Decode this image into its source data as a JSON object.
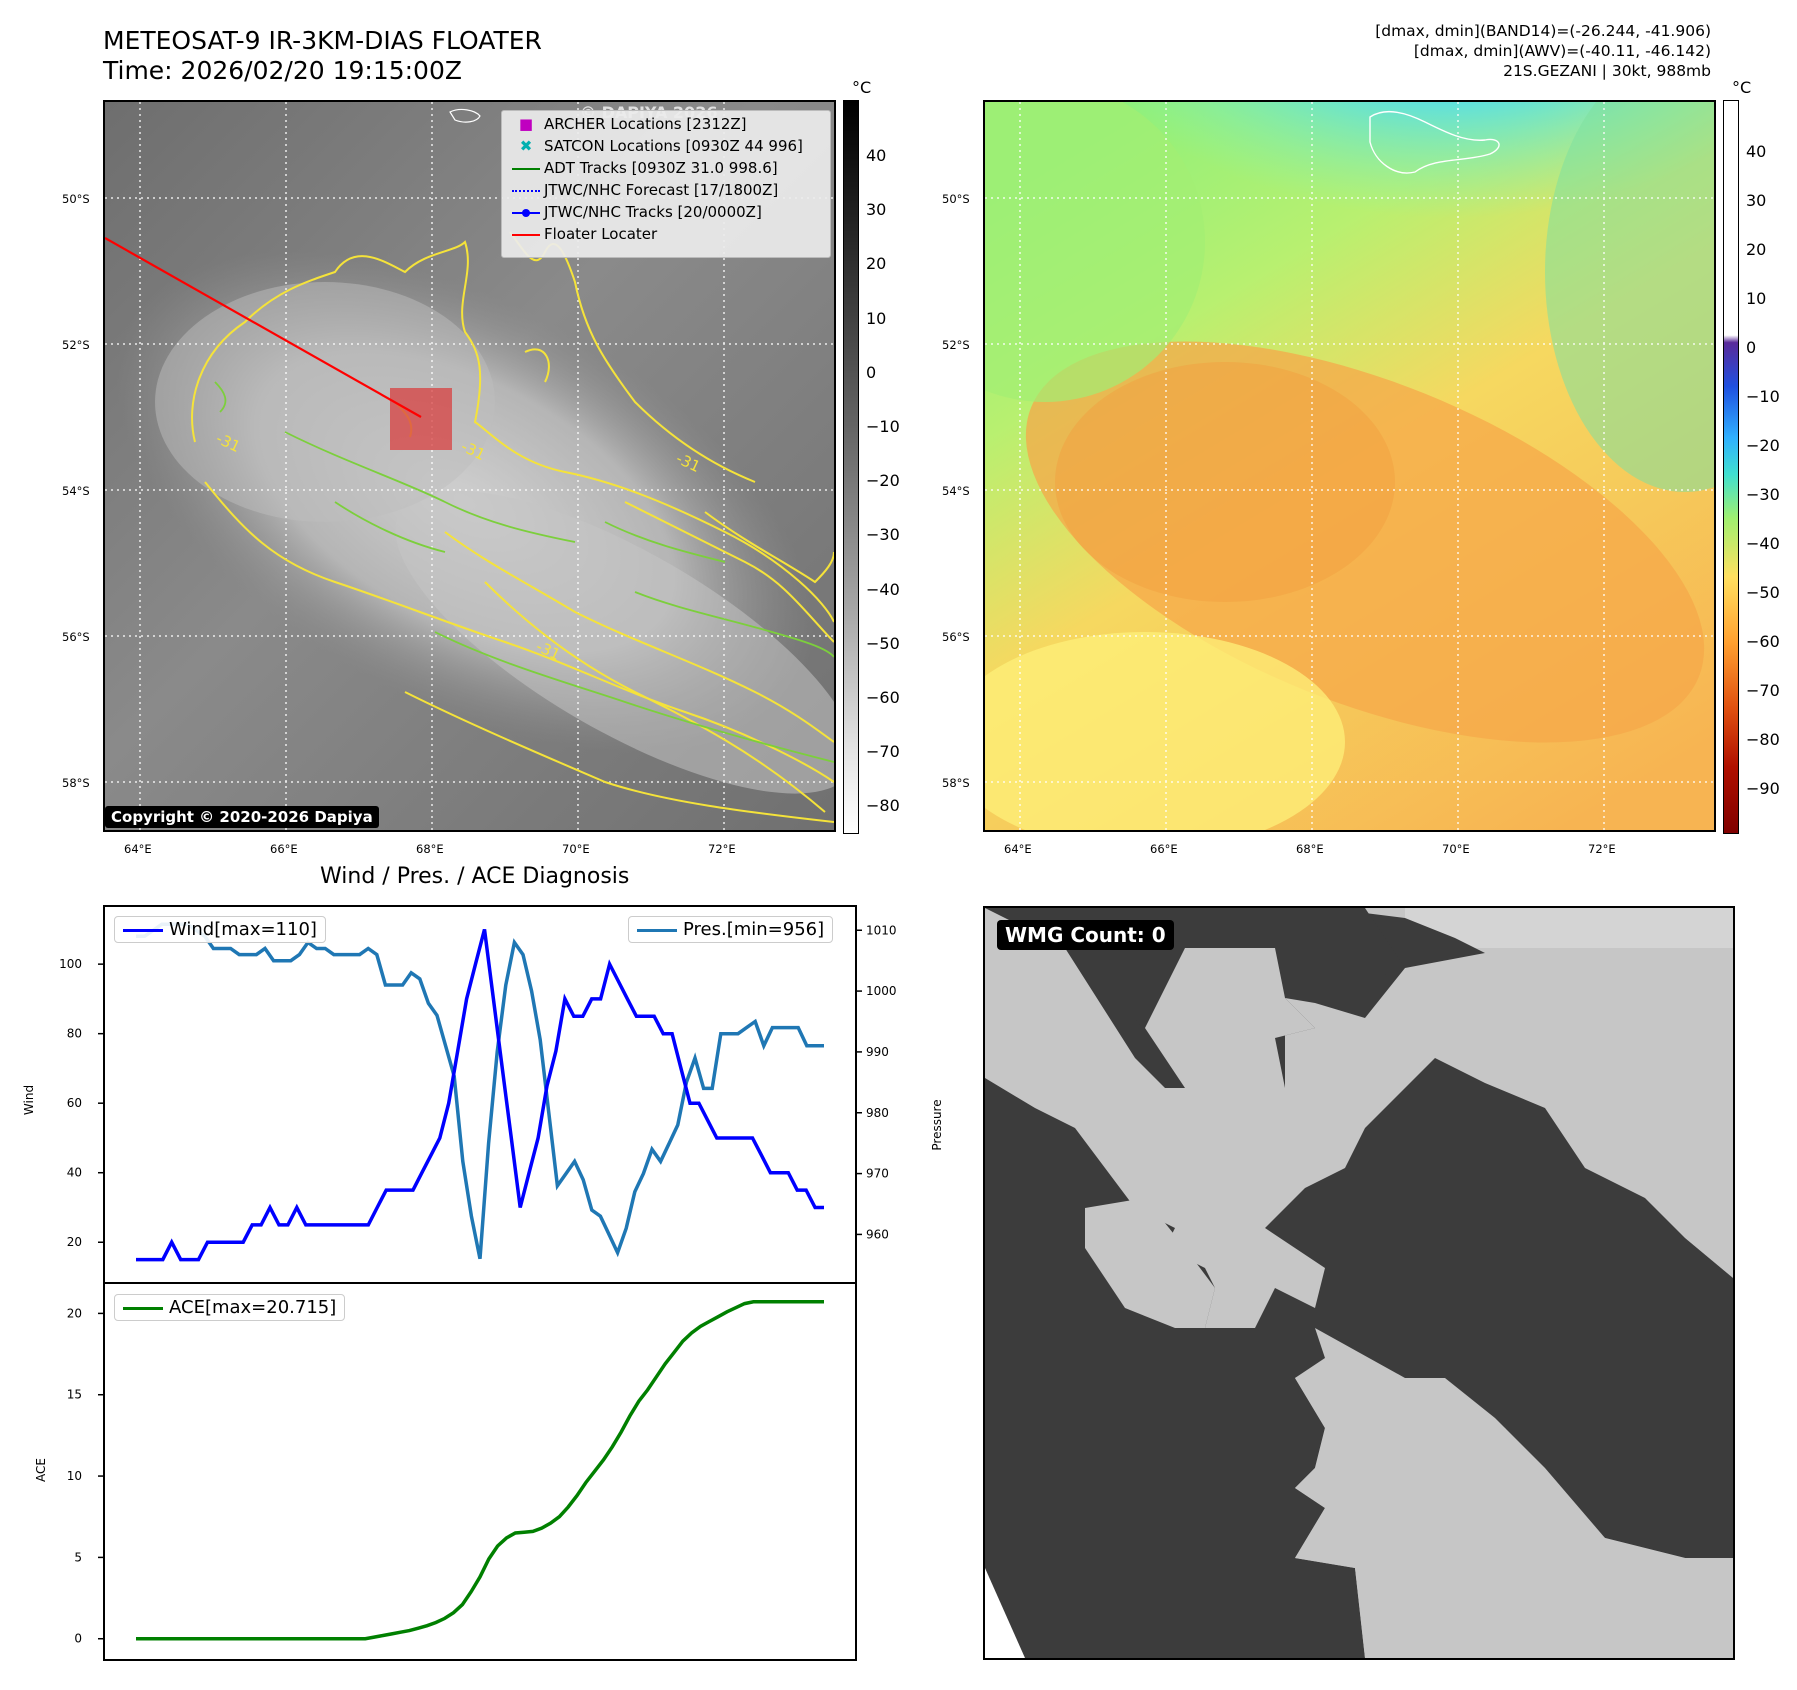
{
  "header": {
    "title_line1": "METEOSAT-9 IR-3KM-DIAS FLOATER",
    "title_line2": "Time: 2026/02/20 19:15:00Z",
    "info_line1": "[dmax, dmin](BAND14)=(-26.244, -41.906)",
    "info_line2": "[dmax, dmin](AWV)=(-40.11, -46.142)",
    "info_line3": "21S.GEZANI | 30kt, 988mb"
  },
  "map": {
    "lat_labels": [
      "50°S",
      "52°S",
      "54°S",
      "56°S",
      "58°S"
    ],
    "lon_labels": [
      "64°E",
      "66°E",
      "68°E",
      "70°E",
      "72°E"
    ],
    "contour_label": "-31",
    "watermark": "© DAPIYA 2026",
    "copyright": "Copyright © 2020-2026 Dapiya",
    "legend": {
      "archer": "ARCHER Locations [2312Z]",
      "satcon": "SATCON Locations [0930Z 44 996]",
      "adt": "ADT Tracks [0930Z 31.0 998.6]",
      "jtwc_forecast": "JTWC/NHC Forecast [17/1800Z]",
      "jtwc_tracks": "JTWC/NHC Tracks [20/0000Z]",
      "floater": "Floater Locater"
    }
  },
  "colorbars": {
    "unit": "°C",
    "ir_ticks": [
      "40",
      "30",
      "20",
      "10",
      "0",
      "−10",
      "−20",
      "−30",
      "−40",
      "−50",
      "−60",
      "−70",
      "−80"
    ],
    "awv_ticks": [
      "40",
      "30",
      "20",
      "10",
      "0",
      "−10",
      "−20",
      "−30",
      "−40",
      "−50",
      "−60",
      "−70",
      "−80",
      "−90"
    ]
  },
  "diagnosis": {
    "title": "Wind / Pres. / ACE Diagnosis",
    "wind_ylabel": "Wind",
    "pres_ylabel": "Pressure",
    "ace_ylabel": "ACE",
    "wind_legend": "Wind[max=110]",
    "pres_legend": "Pres.[min=956]",
    "ace_legend": "ACE[max=20.715]",
    "wind_ticks": [
      "20",
      "40",
      "60",
      "80",
      "100"
    ],
    "pres_ticks": [
      "960",
      "970",
      "980",
      "990",
      "1000",
      "1010"
    ],
    "ace_ticks": [
      "0",
      "5",
      "10",
      "15",
      "20"
    ]
  },
  "wmg": {
    "label": "WMG Count: 0"
  },
  "colors": {
    "wind": "#0000ff",
    "pres": "#1f77b4",
    "ace": "#008000",
    "contour_yellow": "#f5e33a",
    "contour_green": "#7ccf3c",
    "floater": "#ff0000"
  },
  "chart_data": [
    {
      "type": "line",
      "title": "Wind / Pres. / ACE Diagnosis",
      "ylabel": "Wind",
      "ylim": [
        10,
        115
      ],
      "series": [
        {
          "name": "Wind[max=110]",
          "values": [
            15,
            15,
            15,
            15,
            20,
            15,
            15,
            15,
            20,
            20,
            20,
            20,
            20,
            25,
            25,
            30,
            25,
            25,
            30,
            25,
            25,
            25,
            25,
            25,
            25,
            25,
            25,
            30,
            35,
            35,
            35,
            35,
            40,
            45,
            50,
            60,
            75,
            90,
            100,
            110,
            90,
            70,
            50,
            30,
            40,
            50,
            65,
            75,
            90,
            85,
            85,
            90,
            90,
            100,
            95,
            90,
            85,
            85,
            85,
            80,
            80,
            70,
            60,
            60,
            55,
            50,
            50,
            50,
            50,
            50,
            45,
            40,
            40,
            40,
            35,
            35,
            30,
            30
          ]
        }
      ]
    },
    {
      "type": "line",
      "ylabel": "Pressure",
      "ylim": [
        953,
        1013
      ],
      "series": [
        {
          "name": "Pres.[min=956]",
          "values": [
            1009,
            1009,
            1010,
            1011,
            1011,
            1011,
            1011,
            1010,
            1009,
            1007,
            1007,
            1007,
            1006,
            1006,
            1006,
            1007,
            1005,
            1005,
            1005,
            1006,
            1008,
            1007,
            1007,
            1006,
            1006,
            1006,
            1006,
            1007,
            1006,
            1001,
            1001,
            1001,
            1003,
            1002,
            998,
            996,
            991,
            986,
            972,
            963,
            956,
            975,
            990,
            1001,
            1008,
            1006,
            1000,
            992,
            980,
            968,
            970,
            972,
            969,
            964,
            963,
            960,
            957,
            961,
            967,
            970,
            974,
            972,
            975,
            978,
            985,
            989,
            984,
            984,
            993,
            993,
            993,
            994,
            995,
            991,
            994,
            994,
            994,
            994,
            991,
            991,
            991
          ]
        }
      ]
    },
    {
      "type": "line",
      "ylabel": "ACE",
      "ylim": [
        -1,
        21.5
      ],
      "series": [
        {
          "name": "ACE[max=20.715]",
          "values": [
            0,
            0,
            0,
            0,
            0,
            0,
            0,
            0,
            0,
            0,
            0,
            0,
            0,
            0,
            0,
            0,
            0,
            0,
            0,
            0,
            0,
            0,
            0,
            0,
            0,
            0,
            0,
            0.1,
            0.2,
            0.3,
            0.4,
            0.5,
            0.65,
            0.8,
            1.0,
            1.25,
            1.6,
            2.1,
            2.9,
            3.8,
            4.9,
            5.7,
            6.2,
            6.5,
            6.55,
            6.6,
            6.8,
            7.1,
            7.5,
            8.1,
            8.8,
            9.6,
            10.3,
            11.0,
            11.8,
            12.7,
            13.7,
            14.6,
            15.3,
            16.1,
            16.9,
            17.6,
            18.3,
            18.8,
            19.2,
            19.5,
            19.8,
            20.1,
            20.35,
            20.6,
            20.715,
            20.715,
            20.715,
            20.715,
            20.715,
            20.715,
            20.715,
            20.715,
            20.715
          ]
        }
      ]
    }
  ]
}
